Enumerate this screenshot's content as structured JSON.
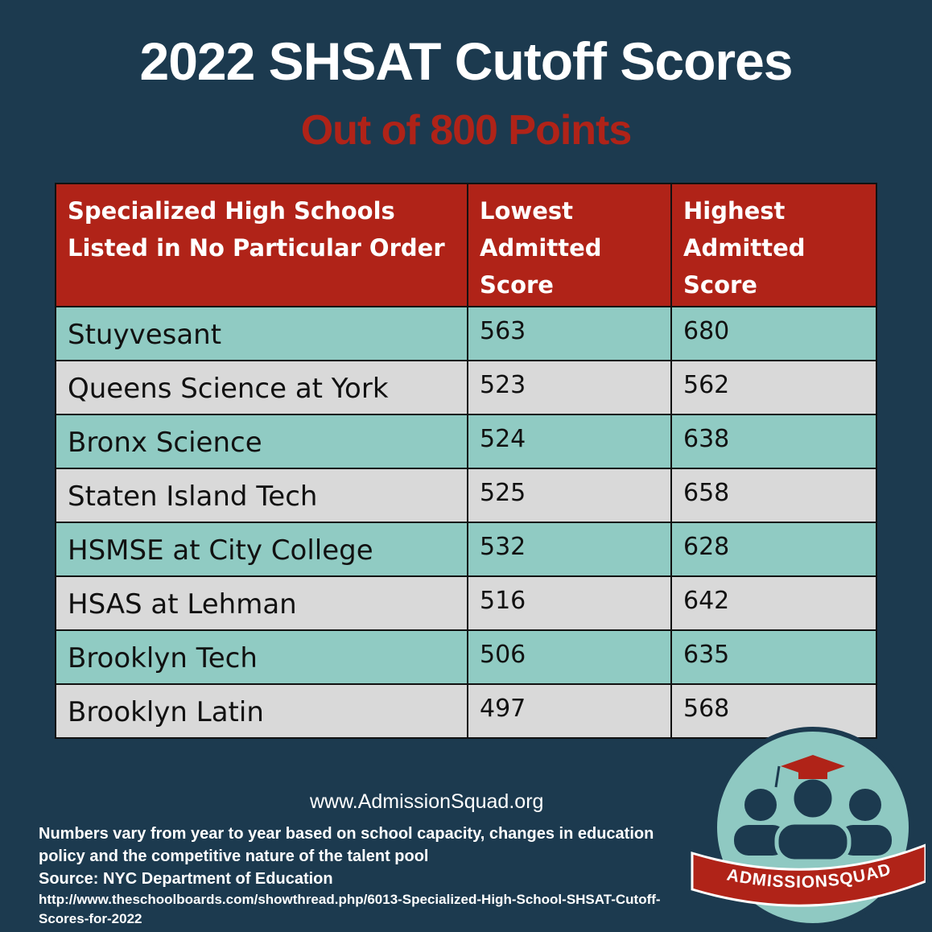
{
  "header": {
    "title": "2022 SHSAT  Cutoff Scores",
    "subtitle": "Out of 800 Points"
  },
  "table": {
    "columns": [
      "Specialized High Schools Listed in No Particular Order",
      "Lowest Admitted Score",
      "Highest Admitted Score"
    ],
    "rows": [
      [
        "Stuyvesant",
        563,
        680
      ],
      [
        "Queens Science at York",
        523,
        562
      ],
      [
        "Bronx Science",
        524,
        638
      ],
      [
        "Staten Island Tech",
        525,
        658
      ],
      [
        "HSMSE at City College",
        532,
        628
      ],
      [
        "HSAS at Lehman",
        516,
        642
      ],
      [
        "Brooklyn Tech",
        506,
        635
      ],
      [
        "Brooklyn Latin",
        497,
        568
      ]
    ]
  },
  "footer": {
    "website": "www.AdmissionSquad.org",
    "note": "Numbers vary from year to year based on school capacity, changes in education policy and the competitive nature of the talent pool",
    "source": "Source: NYC Department of Education",
    "url": "http://www.theschoolboards.com/showthread.php/6013-Specialized-High-School-SHSAT-Cutoff-Scores-for-2022"
  },
  "logo": {
    "text": "ADMISSIONSQUAD"
  }
}
